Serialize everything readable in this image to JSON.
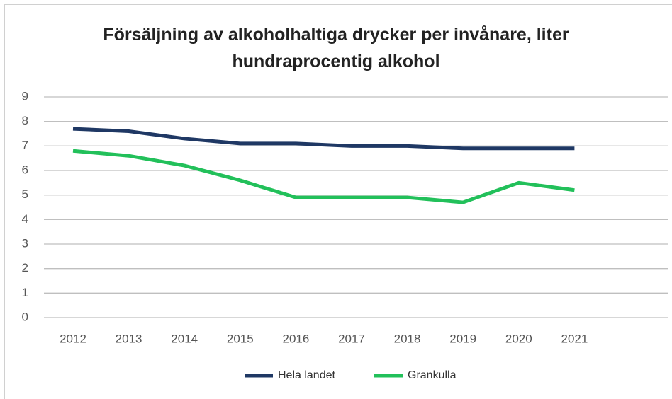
{
  "chart_data": {
    "type": "line",
    "title": "Försäljning av alkoholhaltiga drycker per invånare, liter hundraprocentig alkohol",
    "categories": [
      "2012",
      "2013",
      "2014",
      "2015",
      "2016",
      "2017",
      "2018",
      "2019",
      "2020",
      "2021"
    ],
    "series": [
      {
        "name": "Hela landet",
        "color": "#1f3864",
        "values": [
          7.7,
          7.6,
          7.3,
          7.1,
          7.1,
          7.0,
          7.0,
          6.9,
          6.9,
          6.9
        ]
      },
      {
        "name": "Grankulla",
        "color": "#22c05a",
        "values": [
          6.8,
          6.6,
          6.2,
          5.6,
          4.9,
          4.9,
          4.9,
          4.7,
          5.5,
          5.2
        ]
      }
    ],
    "ylim": [
      0,
      9
    ],
    "yticks": [
      0,
      1,
      2,
      3,
      4,
      5,
      6,
      7,
      8,
      9
    ],
    "grid": true,
    "legend": "bottom"
  }
}
